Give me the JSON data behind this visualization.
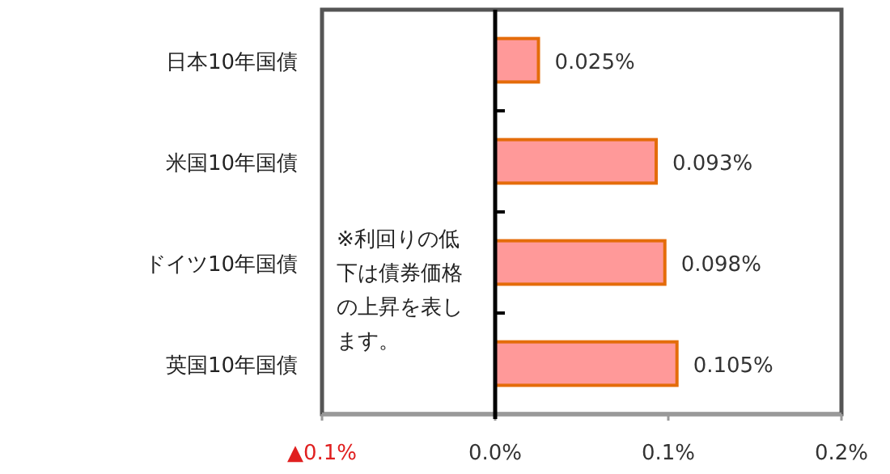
{
  "chart_data": {
    "type": "bar",
    "orientation": "horizontal",
    "categories": [
      "日本10年国債",
      "米国10年国債",
      "ドイツ10年国債",
      "英国10年国債"
    ],
    "values": [
      0.025,
      0.093,
      0.098,
      0.105
    ],
    "value_labels": [
      "0.025%",
      "0.093%",
      "0.098%",
      "0.105%"
    ],
    "color": "#ff9999",
    "xlim": [
      -0.1,
      0.2
    ],
    "xticks": [
      {
        "value": -0.1,
        "label": "▲0.1%"
      },
      {
        "value": 0,
        "label": "0.0%"
      },
      {
        "value": 0.1,
        "label": "0.1%"
      },
      {
        "value": 0.2,
        "label": "0.2%"
      }
    ],
    "annotations": [
      "※利回りの低下は債券価格の上昇を表します。"
    ],
    "tick_labels": "x"
  }
}
